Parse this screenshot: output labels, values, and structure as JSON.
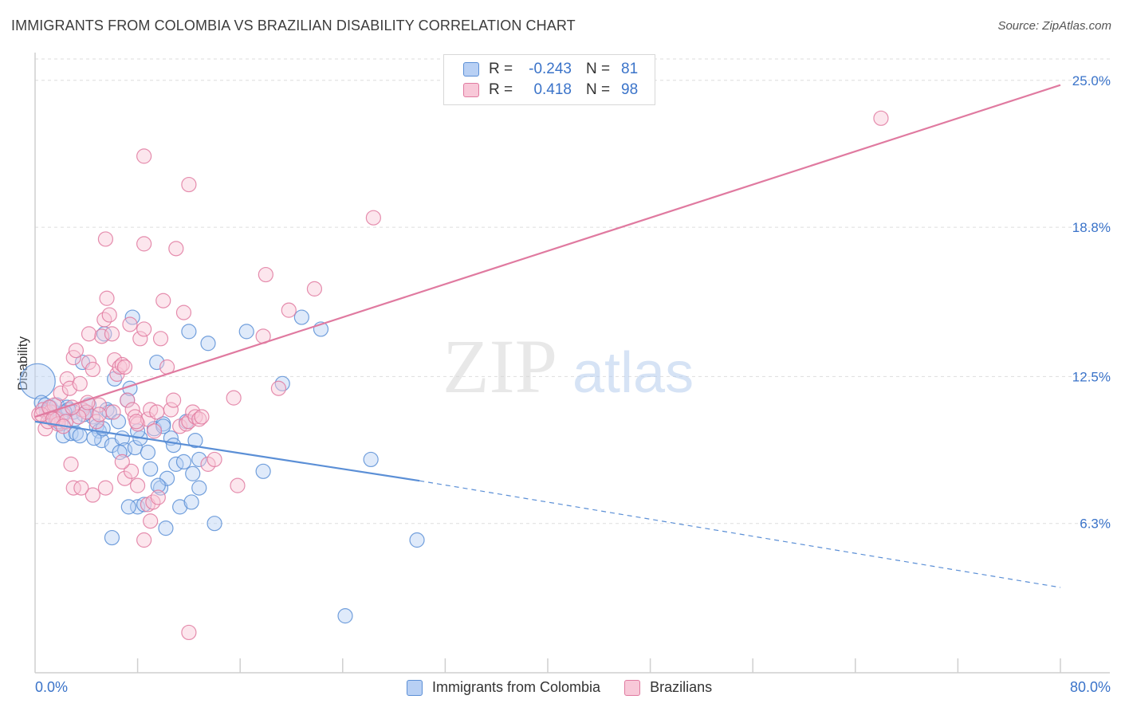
{
  "title": "IMMIGRANTS FROM COLOMBIA VS BRAZILIAN DISABILITY CORRELATION CHART",
  "source": "Source: ZipAtlas.com",
  "watermark": {
    "zip": "ZIP",
    "atlas": "atlas"
  },
  "legend": {
    "rows": [
      {
        "r_label": "R =",
        "r_value": "-0.243",
        "n_label": "N =",
        "n_value": "81",
        "fill": "#b8d0f4",
        "stroke": "#5b8fd6"
      },
      {
        "r_label": "R =",
        "r_value": "0.418",
        "n_label": "N =",
        "n_value": "98",
        "fill": "#f8c8d8",
        "stroke": "#e07aa0"
      }
    ]
  },
  "bottom_legend": [
    {
      "label": "Immigrants from Colombia",
      "fill": "#b8d0f4",
      "stroke": "#5b8fd6"
    },
    {
      "label": "Brazilians",
      "fill": "#f8c8d8",
      "stroke": "#e07aa0"
    }
  ],
  "x_axis": {
    "min_label": "0.0%",
    "max_label": "80.0%"
  },
  "chart_data": {
    "type": "scatter",
    "title": "IMMIGRANTS FROM COLOMBIA VS BRAZILIAN DISABILITY CORRELATION CHART",
    "xlabel": "",
    "ylabel": "Disability",
    "xlim": [
      0,
      80
    ],
    "ylim": [
      0,
      25.9
    ],
    "y_ticks": [
      {
        "value": 6.3,
        "label": "6.3%"
      },
      {
        "value": 12.5,
        "label": "12.5%"
      },
      {
        "value": 18.8,
        "label": "18.8%"
      },
      {
        "value": 25.0,
        "label": "25.0%"
      }
    ],
    "x_tick_values": [
      8,
      16,
      24,
      32,
      40,
      48,
      56,
      64,
      72,
      80
    ],
    "grid": true,
    "series": [
      {
        "name": "Immigrants from Colombia",
        "color": "#5b8fd6",
        "fill": "#b8d0f4",
        "trend": {
          "x0": 0,
          "y0": 10.6,
          "x1": 30,
          "y1": 8.1,
          "dashed_to_x": 80,
          "dashed_to_y": 3.6
        },
        "points": [
          [
            0.2,
            12.3
          ],
          [
            0.5,
            11.4
          ],
          [
            0.8,
            11.3
          ],
          [
            1.0,
            11.1
          ],
          [
            1.2,
            11.2
          ],
          [
            1.5,
            11.0
          ],
          [
            1.7,
            11.3
          ],
          [
            2.0,
            10.5
          ],
          [
            2.2,
            10.0
          ],
          [
            2.5,
            11.2
          ],
          [
            2.8,
            10.1
          ],
          [
            3.0,
            11.0
          ],
          [
            3.2,
            10.1
          ],
          [
            3.5,
            10.0
          ],
          [
            3.7,
            13.1
          ],
          [
            4.0,
            11.0
          ],
          [
            4.2,
            11.3
          ],
          [
            4.5,
            10.8
          ],
          [
            4.8,
            10.4
          ],
          [
            5.0,
            10.2
          ],
          [
            5.2,
            9.8
          ],
          [
            5.4,
            14.3
          ],
          [
            5.6,
            11.1
          ],
          [
            5.8,
            11.0
          ],
          [
            6.0,
            9.6
          ],
          [
            6.2,
            12.4
          ],
          [
            6.5,
            10.6
          ],
          [
            6.8,
            9.9
          ],
          [
            7.0,
            9.4
          ],
          [
            7.2,
            11.5
          ],
          [
            7.4,
            12.0
          ],
          [
            7.6,
            15.0
          ],
          [
            7.8,
            9.5
          ],
          [
            8.0,
            7.0
          ],
          [
            8.2,
            9.9
          ],
          [
            8.5,
            7.1
          ],
          [
            8.8,
            9.3
          ],
          [
            9.0,
            8.6
          ],
          [
            9.3,
            10.3
          ],
          [
            9.5,
            13.1
          ],
          [
            9.8,
            7.8
          ],
          [
            10.0,
            10.5
          ],
          [
            10.3,
            8.2
          ],
          [
            10.6,
            9.9
          ],
          [
            10.8,
            9.6
          ],
          [
            11.0,
            8.8
          ],
          [
            11.3,
            7.0
          ],
          [
            11.6,
            8.9
          ],
          [
            11.8,
            10.6
          ],
          [
            12.0,
            14.4
          ],
          [
            12.3,
            8.4
          ],
          [
            12.5,
            9.8
          ],
          [
            12.8,
            9.0
          ],
          [
            6.0,
            5.7
          ],
          [
            8.0,
            10.2
          ],
          [
            7.3,
            7.0
          ],
          [
            10.0,
            10.4
          ],
          [
            10.2,
            6.1
          ],
          [
            12.2,
            7.2
          ],
          [
            12.8,
            7.8
          ],
          [
            13.5,
            13.9
          ],
          [
            14.0,
            6.3
          ],
          [
            16.5,
            14.4
          ],
          [
            17.8,
            8.5
          ],
          [
            19.3,
            12.2
          ],
          [
            20.8,
            15.0
          ],
          [
            22.3,
            14.5
          ],
          [
            26.2,
            9.0
          ],
          [
            29.8,
            5.6
          ],
          [
            24.2,
            2.4
          ],
          [
            1.5,
            10.8
          ],
          [
            2.6,
            11.1
          ],
          [
            3.8,
            10.9
          ],
          [
            4.6,
            9.9
          ],
          [
            5.3,
            10.3
          ],
          [
            6.6,
            9.3
          ],
          [
            9.6,
            7.9
          ],
          [
            0.9,
            11.0
          ],
          [
            1.8,
            10.6
          ],
          [
            2.3,
            11.0
          ],
          [
            3.1,
            10.7
          ]
        ]
      },
      {
        "name": "Brazilians",
        "color": "#e07aa0",
        "fill": "#f8c8d8",
        "trend": {
          "x0": 0,
          "y0": 10.8,
          "x1": 80,
          "y1": 24.8
        },
        "points": [
          [
            0.3,
            10.9
          ],
          [
            0.6,
            11.1
          ],
          [
            0.8,
            10.3
          ],
          [
            1.0,
            10.6
          ],
          [
            1.2,
            11.0
          ],
          [
            1.5,
            11.3
          ],
          [
            1.7,
            10.7
          ],
          [
            2.0,
            11.8
          ],
          [
            2.2,
            10.9
          ],
          [
            2.5,
            12.4
          ],
          [
            2.7,
            12.0
          ],
          [
            3.0,
            13.3
          ],
          [
            3.2,
            13.6
          ],
          [
            3.5,
            12.2
          ],
          [
            3.7,
            11.1
          ],
          [
            4.0,
            11.0
          ],
          [
            4.2,
            13.1
          ],
          [
            4.5,
            12.8
          ],
          [
            4.8,
            10.6
          ],
          [
            5.0,
            11.3
          ],
          [
            5.2,
            14.2
          ],
          [
            5.4,
            14.9
          ],
          [
            5.6,
            15.8
          ],
          [
            5.8,
            15.1
          ],
          [
            6.0,
            14.3
          ],
          [
            6.2,
            13.2
          ],
          [
            6.4,
            12.6
          ],
          [
            6.6,
            12.9
          ],
          [
            6.8,
            13.0
          ],
          [
            7.0,
            12.9
          ],
          [
            7.2,
            11.5
          ],
          [
            7.4,
            14.7
          ],
          [
            7.6,
            11.1
          ],
          [
            7.8,
            10.8
          ],
          [
            8.0,
            10.5
          ],
          [
            8.2,
            14.1
          ],
          [
            8.5,
            14.5
          ],
          [
            8.8,
            10.7
          ],
          [
            9.0,
            11.1
          ],
          [
            9.3,
            10.2
          ],
          [
            9.5,
            11.0
          ],
          [
            9.8,
            14.1
          ],
          [
            10.0,
            15.7
          ],
          [
            10.3,
            12.9
          ],
          [
            10.6,
            11.1
          ],
          [
            10.8,
            11.5
          ],
          [
            11.0,
            17.9
          ],
          [
            11.3,
            10.4
          ],
          [
            11.6,
            15.2
          ],
          [
            11.8,
            10.5
          ],
          [
            12.0,
            10.6
          ],
          [
            12.3,
            11.0
          ],
          [
            12.5,
            10.8
          ],
          [
            12.8,
            10.7
          ],
          [
            13.0,
            10.8
          ],
          [
            13.5,
            8.8
          ],
          [
            14.0,
            9.0
          ],
          [
            15.5,
            11.6
          ],
          [
            15.8,
            7.9
          ],
          [
            17.8,
            14.2
          ],
          [
            18.0,
            16.8
          ],
          [
            19.0,
            12.0
          ],
          [
            19.8,
            15.3
          ],
          [
            21.8,
            16.2
          ],
          [
            26.4,
            19.2
          ],
          [
            66.0,
            23.4
          ],
          [
            8.5,
            21.8
          ],
          [
            12.0,
            20.6
          ],
          [
            5.5,
            18.3
          ],
          [
            8.5,
            18.1
          ],
          [
            2.8,
            8.8
          ],
          [
            3.0,
            7.8
          ],
          [
            4.5,
            7.5
          ],
          [
            5.5,
            7.8
          ],
          [
            7.0,
            8.2
          ],
          [
            8.0,
            7.9
          ],
          [
            8.8,
            7.1
          ],
          [
            9.0,
            6.4
          ],
          [
            9.2,
            7.2
          ],
          [
            7.5,
            8.5
          ],
          [
            6.8,
            8.9
          ],
          [
            8.5,
            5.6
          ],
          [
            12.0,
            1.7
          ],
          [
            4.2,
            14.3
          ],
          [
            1.8,
            10.5
          ],
          [
            0.5,
            10.9
          ],
          [
            2.4,
            10.6
          ],
          [
            3.4,
            10.8
          ],
          [
            1.1,
            11.2
          ],
          [
            2.9,
            11.2
          ],
          [
            4.1,
            11.4
          ],
          [
            5.0,
            10.9
          ],
          [
            6.1,
            11.0
          ],
          [
            7.9,
            10.6
          ],
          [
            3.6,
            7.8
          ],
          [
            9.6,
            7.4
          ],
          [
            1.4,
            10.7
          ],
          [
            2.2,
            10.4
          ]
        ]
      }
    ]
  }
}
